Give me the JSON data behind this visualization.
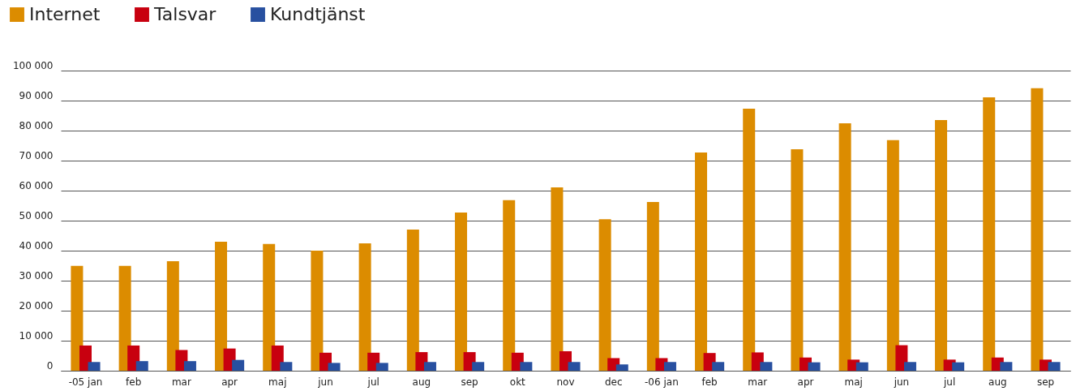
{
  "chart_data": {
    "type": "bar",
    "categories": [
      "-05 jan",
      "feb",
      "mar",
      "apr",
      "maj",
      "jun",
      "jul",
      "aug",
      "sep",
      "okt",
      "nov",
      "dec",
      "-06 jan",
      "feb",
      "mar",
      "apr",
      "maj",
      "jun",
      "jul",
      "aug",
      "sep"
    ],
    "series": [
      {
        "name": "Internet",
        "color": "#dc8c00",
        "values": [
          34900,
          34900,
          36500,
          43000,
          42200,
          40000,
          42400,
          47000,
          52700,
          56800,
          61100,
          50500,
          56200,
          72700,
          87300,
          73800,
          82400,
          76800,
          83500,
          91100,
          94100
        ]
      },
      {
        "name": "Talsvar",
        "color": "#c8000f",
        "values": [
          8400,
          8400,
          6900,
          7400,
          8400,
          6000,
          6000,
          6200,
          6200,
          6000,
          6500,
          4200,
          4200,
          5900,
          6100,
          4400,
          3700,
          8500,
          3700,
          4400,
          3700
        ]
      },
      {
        "name": "Kundtjänst",
        "color": "#2850a0",
        "values": [
          2900,
          3200,
          3200,
          3600,
          2900,
          2600,
          2600,
          2900,
          2900,
          2900,
          2900,
          2100,
          2900,
          2900,
          2900,
          2800,
          2800,
          2900,
          2800,
          2900,
          2900
        ]
      }
    ],
    "ylim": [
      0,
      100000
    ],
    "yticks": [
      {
        "value": 0,
        "label": "0"
      },
      {
        "value": 10000,
        "label": "10 000"
      },
      {
        "value": 20000,
        "label": "20 000"
      },
      {
        "value": 30000,
        "label": "30 000"
      },
      {
        "value": 40000,
        "label": "40 000"
      },
      {
        "value": 50000,
        "label": "50 000"
      },
      {
        "value": 60000,
        "label": "60 000"
      },
      {
        "value": 70000,
        "label": "70 000"
      },
      {
        "value": 80000,
        "label": "80 000"
      },
      {
        "value": 90000,
        "label": "90 000"
      },
      {
        "value": 100000,
        "label": "100 000"
      }
    ],
    "grid": "y",
    "legend": "top left"
  }
}
